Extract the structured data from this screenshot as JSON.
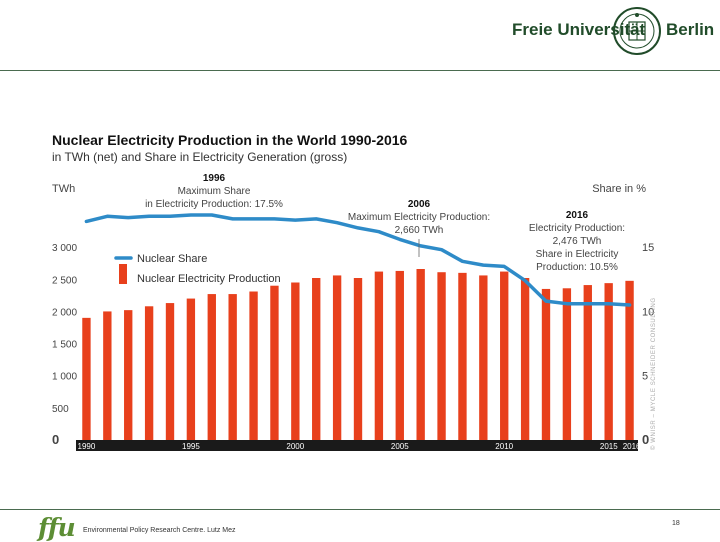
{
  "header": {
    "university_left": "Freie Universität",
    "university_right": "Berlin"
  },
  "footer": {
    "logo": "ffu",
    "org": "Environmental Policy Research Centre. Lutz Mez",
    "page": "18"
  },
  "chart_data": {
    "type": "bar",
    "title": "Nuclear Electricity Production in the World 1990-2016",
    "subtitle": "in TWh (net) and Share in Electricity Generation (gross)",
    "ylabel": "TWh",
    "y2label": "Share in %",
    "ylim": [
      0,
      3500
    ],
    "y2lim": [
      0,
      17.5
    ],
    "y_ticks": [
      "0",
      "500",
      "1 000",
      "1 500",
      "2 000",
      "2 500",
      "3 000"
    ],
    "y_tick_values": [
      0,
      500,
      1000,
      1500,
      2000,
      2500,
      3000
    ],
    "y2_ticks": [
      "0",
      "5",
      "10",
      "15"
    ],
    "y2_tick_values": [
      0,
      5,
      10,
      15
    ],
    "x_tick_labels": [
      "1990",
      "1995",
      "2000",
      "2005",
      "2010",
      "2015",
      "2016"
    ],
    "x_tick_years": [
      1990,
      1995,
      2000,
      2005,
      2010,
      2015,
      2016
    ],
    "categories": [
      1990,
      1991,
      1992,
      1993,
      1994,
      1995,
      1996,
      1997,
      1998,
      1999,
      2000,
      2001,
      2002,
      2003,
      2004,
      2005,
      2006,
      2007,
      2008,
      2009,
      2010,
      2011,
      2012,
      2013,
      2014,
      2015,
      2016
    ],
    "series": [
      {
        "name": "Nuclear Electricity Production",
        "type": "bar",
        "color": "#e8401c",
        "values": [
          1900,
          2000,
          2020,
          2080,
          2130,
          2200,
          2270,
          2270,
          2310,
          2400,
          2450,
          2520,
          2560,
          2520,
          2620,
          2630,
          2660,
          2610,
          2600,
          2560,
          2620,
          2520,
          2350,
          2360,
          2410,
          2440,
          2476
        ]
      },
      {
        "name": "Nuclear Share",
        "type": "line",
        "color": "#2e8bc8",
        "values": [
          17.0,
          17.4,
          17.3,
          17.4,
          17.4,
          17.5,
          17.5,
          17.2,
          17.2,
          17.2,
          17.1,
          17.2,
          16.9,
          16.5,
          16.2,
          15.6,
          15.1,
          14.8,
          13.9,
          13.6,
          13.5,
          12.4,
          10.8,
          10.6,
          10.6,
          10.6,
          10.5
        ]
      }
    ],
    "legend": [
      "Nuclear Share",
      "Nuclear Electricity Production"
    ],
    "annotations": [
      {
        "bold": "1996",
        "lines": [
          "Maximum Share",
          "in Electricity Production: 17.5%"
        ]
      },
      {
        "bold": "2006",
        "lines": [
          "Maximum Electricity Production:",
          "2,660 TWh"
        ]
      },
      {
        "bold": "2016",
        "lines": [
          "Electricity Production:",
          "2,476 TWh",
          "Share in Electricity",
          "Production: 10.5%"
        ]
      }
    ],
    "credit": "© WNISR – MYCLE SCHNEIDER CONSULTING"
  }
}
